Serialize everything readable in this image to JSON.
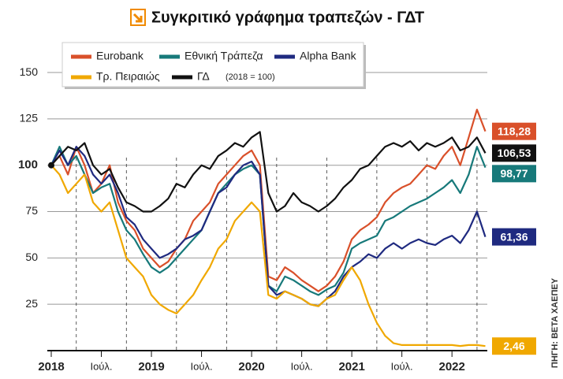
{
  "chart_data": {
    "type": "line",
    "title": "Συγκριτικό γράφημα τραπεζών - ΓΔΤ",
    "note": "(2018 = 100)",
    "source": "ΠΗΓΗ: BETA ΧΑΕΠΕΥ",
    "x": [
      2018,
      2018.083,
      2018.167,
      2018.25,
      2018.333,
      2018.417,
      2018.5,
      2018.583,
      2018.667,
      2018.75,
      2018.833,
      2018.917,
      2019,
      2019.083,
      2019.167,
      2019.25,
      2019.333,
      2019.417,
      2019.5,
      2019.583,
      2019.667,
      2019.75,
      2019.833,
      2019.917,
      2020,
      2020.083,
      2020.167,
      2020.25,
      2020.333,
      2020.417,
      2020.5,
      2020.583,
      2020.667,
      2020.75,
      2020.833,
      2020.917,
      2021,
      2021.083,
      2021.167,
      2021.25,
      2021.333,
      2021.417,
      2021.5,
      2021.583,
      2021.667,
      2021.75,
      2021.833,
      2021.917,
      2022,
      2022.083,
      2022.167,
      2022.25,
      2022.333
    ],
    "series": [
      {
        "name": "Eurobank",
        "color": "#d9502a",
        "end_label": "118,28",
        "values": [
          100,
          105,
          95,
          110,
          100,
          85,
          90,
          100,
          80,
          70,
          65,
          55,
          50,
          45,
          48,
          55,
          60,
          70,
          75,
          80,
          90,
          95,
          100,
          105,
          108,
          100,
          40,
          38,
          45,
          42,
          38,
          35,
          32,
          35,
          40,
          48,
          60,
          65,
          68,
          72,
          80,
          85,
          88,
          90,
          95,
          100,
          98,
          105,
          110,
          100,
          115,
          130,
          118.28
        ]
      },
      {
        "name": "Εθνική Τράπεζα",
        "color": "#17797a",
        "end_label": "98,77",
        "values": [
          100,
          110,
          100,
          105,
          95,
          85,
          88,
          90,
          75,
          65,
          60,
          52,
          45,
          42,
          45,
          50,
          55,
          60,
          65,
          75,
          85,
          90,
          95,
          98,
          100,
          95,
          35,
          32,
          40,
          38,
          35,
          32,
          30,
          33,
          35,
          42,
          55,
          58,
          60,
          62,
          70,
          72,
          75,
          78,
          80,
          82,
          85,
          88,
          92,
          85,
          95,
          110,
          98.77
        ]
      },
      {
        "name": "Alpha Bank",
        "color": "#1f2a80",
        "end_label": "61,36",
        "values": [
          100,
          108,
          100,
          110,
          105,
          95,
          90,
          95,
          85,
          72,
          68,
          60,
          55,
          50,
          52,
          55,
          60,
          62,
          65,
          75,
          85,
          88,
          95,
          100,
          102,
          95,
          35,
          30,
          32,
          30,
          28,
          25,
          24,
          28,
          32,
          40,
          45,
          48,
          52,
          50,
          55,
          58,
          55,
          58,
          60,
          58,
          57,
          60,
          62,
          58,
          65,
          75,
          61.36
        ]
      },
      {
        "name": "Τρ. Πειραιώς",
        "color": "#f0a800",
        "end_label": "2,46",
        "values": [
          100,
          95,
          85,
          90,
          95,
          80,
          75,
          80,
          65,
          50,
          45,
          40,
          30,
          25,
          22,
          20,
          25,
          30,
          38,
          45,
          55,
          60,
          70,
          75,
          80,
          75,
          30,
          28,
          32,
          30,
          28,
          25,
          24,
          28,
          30,
          38,
          45,
          38,
          25,
          15,
          8,
          4,
          3,
          3,
          3,
          3,
          3,
          3,
          3,
          2.5,
          3,
          3,
          2.46
        ]
      },
      {
        "name": "ΓΔ",
        "color": "#111111",
        "end_label": "106,53",
        "values": [
          100,
          105,
          110,
          108,
          112,
          100,
          95,
          98,
          88,
          80,
          78,
          75,
          75,
          78,
          82,
          90,
          88,
          95,
          100,
          98,
          105,
          108,
          112,
          110,
          115,
          118,
          85,
          75,
          78,
          85,
          80,
          78,
          75,
          78,
          82,
          88,
          92,
          98,
          100,
          105,
          110,
          112,
          110,
          113,
          108,
          112,
          110,
          112,
          115,
          108,
          110,
          115,
          106.53
        ]
      }
    ],
    "xlim": [
      2018,
      2022.4
    ],
    "xticks": [
      2018,
      {
        "value": 2018.5,
        "label": "Ιούλ."
      },
      2019,
      {
        "value": 2019.5,
        "label": "Ιούλ."
      },
      2020,
      {
        "value": 2020.5,
        "label": "Ιούλ."
      },
      2021,
      {
        "value": 2021.5,
        "label": "Ιούλ."
      },
      2022
    ],
    "xgrid": [
      2018.25,
      2018.75,
      2019.25,
      2019.75,
      2020.25,
      2020.75,
      2021.25,
      2021.75,
      2022.25
    ],
    "ylim": [
      0,
      170
    ],
    "yticks": [
      25,
      50,
      75,
      100,
      125,
      150
    ],
    "grid": true
  }
}
